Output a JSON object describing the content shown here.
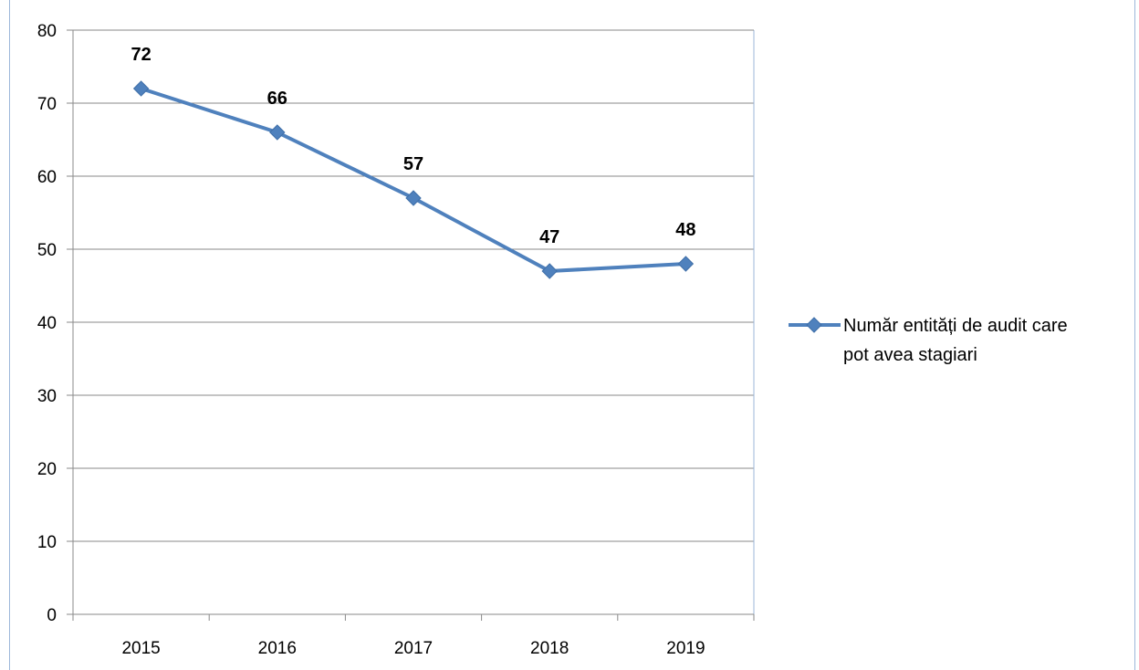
{
  "chart_data": {
    "type": "line",
    "categories": [
      "2015",
      "2016",
      "2017",
      "2018",
      "2019"
    ],
    "series": [
      {
        "name": "Număr entități de audit care pot avea stagiari",
        "values": [
          72,
          66,
          57,
          47,
          48
        ],
        "color": "#4f81bd",
        "marker": "diamond"
      }
    ],
    "ylim": [
      0,
      80
    ],
    "yticks": [
      0,
      10,
      20,
      30,
      40,
      50,
      60,
      70,
      80
    ],
    "data_labels": true,
    "grid": "horizontal",
    "legend_position": "right",
    "legend_lines": [
      "Număr entități de audit care",
      "pot avea stagiari"
    ],
    "title": "",
    "xlabel": "",
    "ylabel": ""
  }
}
